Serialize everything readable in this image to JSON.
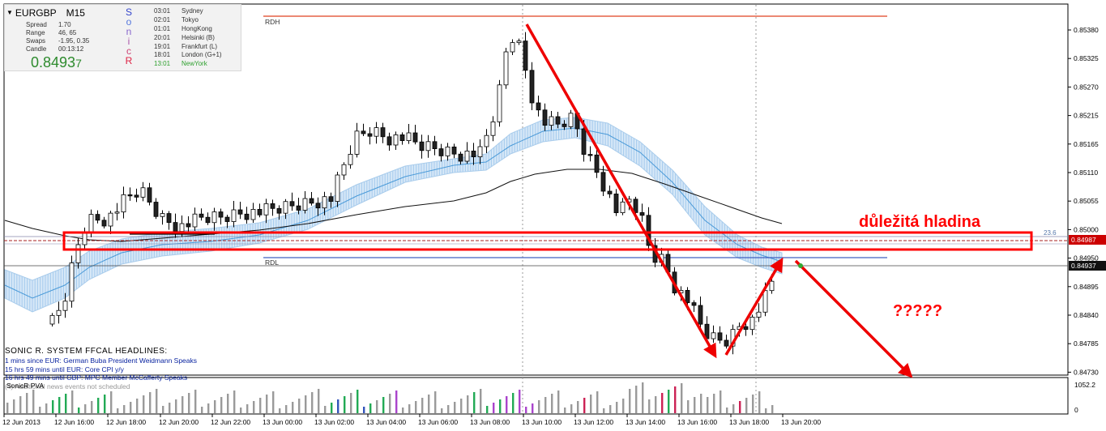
{
  "symbol": "EURGBP",
  "timeframe": "M15",
  "info": {
    "stats": [
      {
        "label": "Spread",
        "value": "1.70"
      },
      {
        "label": "Range",
        "value": "46, 65"
      },
      {
        "label": "Swaps",
        "value": "-1.95, 0.35"
      },
      {
        "label": "Candle",
        "value": "00:13:12"
      }
    ],
    "price_main": "0.8493",
    "price_last": "7"
  },
  "sonic_letters": [
    "S",
    "o",
    "n",
    "i",
    "c",
    "R"
  ],
  "sessions": [
    {
      "time": "03:01",
      "name": "Sydney",
      "color": "#555555"
    },
    {
      "time": "02:01",
      "name": "Tokyo",
      "color": "#555555"
    },
    {
      "time": "01:01",
      "name": "HongKong",
      "color": "#555555"
    },
    {
      "time": "20:01",
      "name": "Helsinki  (B)",
      "color": "#555555"
    },
    {
      "time": "19:01",
      "name": "Frankfurt  (L)",
      "color": "#555555"
    },
    {
      "time": "18:01",
      "name": "London  (G+1)",
      "color": "#555555"
    },
    {
      "time": "13:01",
      "name": "NewYork",
      "color": "#2ea02e"
    }
  ],
  "news": {
    "title": "SONIC R. SYSTEM  FFCAL HEADLINES:",
    "items": [
      "1 mins since EUR: German Buba President Weidmann Speaks",
      "15 hrs 59 mins until EUR: Core CPI y/y",
      "16 hrs 49 mins until GBP: MPC Member McCafferty Speaks"
    ],
    "footer": "(4)  Additional news events not scheduled"
  },
  "lines": {
    "rdh": "RDH",
    "rdl": "RDL",
    "fib": "23.6"
  },
  "annotations": {
    "key_level": "důležitá hladina",
    "question": "?????"
  },
  "price_axis": {
    "ticks": [
      "0.85380",
      "0.85325",
      "0.85270",
      "0.85215",
      "0.85165",
      "0.85110",
      "0.85055",
      "0.85000",
      "0.84950",
      "0.84895",
      "0.84840",
      "0.84785",
      "0.84730"
    ],
    "tag_level": "0.84987",
    "tag_current": "0.84937"
  },
  "time_axis": {
    "labels": [
      "12 Jun 2013",
      "12 Jun 16:00",
      "12 Jun 18:00",
      "12 Jun 20:00",
      "12 Jun 22:00",
      "13 Jun 00:00",
      "13 Jun 02:00",
      "13 Jun 04:00",
      "13 Jun 06:00",
      "13 Jun 08:00",
      "13 Jun 10:00",
      "13 Jun 12:00",
      "13 Jun 14:00",
      "13 Jun 16:00",
      "13 Jun 18:00",
      "13 Jun 20:00"
    ]
  },
  "pva": {
    "label": "SonicR PVA",
    "axis_top": "1052.2",
    "axis_bottom": "0"
  },
  "colors": {
    "key_level_box": "#ff0000",
    "arrow": "#ee0000",
    "rdh_line": "#e04020",
    "rdl_line": "#4060c0",
    "ema_band": "#bcd9f2",
    "tag_bg": "#cc0000"
  }
}
